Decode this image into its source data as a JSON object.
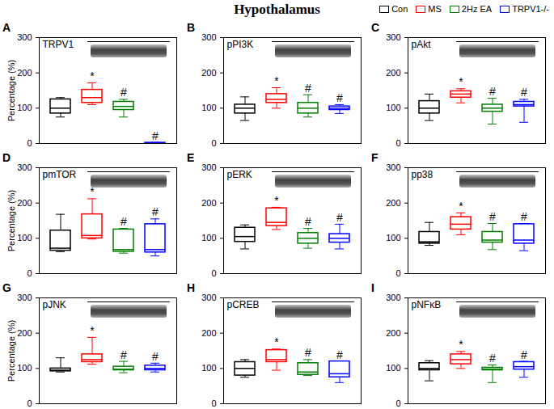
{
  "title": "Hypothalamus",
  "chart_data": [
    {
      "type": "box",
      "panel": "A",
      "title": "TRPV1",
      "ylabel": "Percentage (%)",
      "categories": [
        "Con",
        "MS",
        "2Hz EA",
        "TRPV1-/-"
      ],
      "colors": [
        "#000000",
        "#ff0000",
        "#008000",
        "#0000ff"
      ],
      "min": [
        75,
        110,
        75,
        0
      ],
      "q1": [
        85,
        115,
        95,
        0
      ],
      "median": [
        100,
        130,
        105,
        1
      ],
      "q3": [
        125,
        152,
        118,
        2
      ],
      "max": [
        130,
        172,
        125,
        3
      ],
      "annotations": [
        null,
        "*",
        "#",
        "#"
      ],
      "ylim": [
        0,
        300
      ],
      "yticks": [
        0,
        100,
        200,
        300
      ],
      "tick_labels": "y"
    },
    {
      "type": "box",
      "panel": "B",
      "title": "pPI3K",
      "categories": [
        "Con",
        "MS",
        "2Hz EA",
        "TRPV1-/-"
      ],
      "colors": [
        "#000000",
        "#ff0000",
        "#008000",
        "#0000ff"
      ],
      "min": [
        65,
        100,
        75,
        85
      ],
      "q1": [
        85,
        115,
        85,
        95
      ],
      "median": [
        100,
        125,
        100,
        100
      ],
      "q3": [
        110,
        140,
        115,
        105
      ],
      "max": [
        132,
        158,
        138,
        110
      ],
      "annotations": [
        null,
        "*",
        "#",
        "#"
      ],
      "ylim": [
        0,
        300
      ],
      "yticks": [
        0,
        100,
        200,
        300
      ],
      "tick_labels": "y"
    },
    {
      "type": "box",
      "panel": "C",
      "title": "pAkt",
      "categories": [
        "Con",
        "MS",
        "2Hz EA",
        "TRPV1-/-"
      ],
      "colors": [
        "#000000",
        "#ff0000",
        "#008000",
        "#0000ff"
      ],
      "min": [
        65,
        115,
        55,
        60
      ],
      "q1": [
        85,
        130,
        90,
        105
      ],
      "median": [
        100,
        140,
        100,
        110
      ],
      "q3": [
        120,
        148,
        110,
        118
      ],
      "max": [
        140,
        155,
        128,
        125
      ],
      "annotations": [
        null,
        "*",
        "#",
        "#"
      ],
      "ylim": [
        0,
        300
      ],
      "yticks": [
        0,
        100,
        200,
        300
      ],
      "tick_labels": "y"
    },
    {
      "type": "box",
      "panel": "D",
      "title": "pmTOR",
      "ylabel": "Percentage (%)",
      "categories": [
        "Con",
        "MS",
        "2Hz EA",
        "TRPV1-/-"
      ],
      "colors": [
        "#000000",
        "#ff0000",
        "#008000",
        "#0000ff"
      ],
      "min": [
        62,
        98,
        58,
        50
      ],
      "q1": [
        65,
        100,
        62,
        60
      ],
      "median": [
        72,
        108,
        68,
        68
      ],
      "q3": [
        122,
        168,
        125,
        140
      ],
      "max": [
        168,
        212,
        128,
        155
      ],
      "annotations": [
        null,
        "*",
        "#",
        "#"
      ],
      "ylim": [
        0,
        300
      ],
      "yticks": [
        0,
        100,
        200,
        300
      ],
      "tick_labels": "y"
    },
    {
      "type": "box",
      "panel": "E",
      "title": "pERK",
      "categories": [
        "Con",
        "MS",
        "2Hz EA",
        "TRPV1-/-"
      ],
      "colors": [
        "#000000",
        "#ff0000",
        "#008000",
        "#0000ff"
      ],
      "min": [
        70,
        125,
        72,
        70
      ],
      "q1": [
        90,
        135,
        85,
        88
      ],
      "median": [
        105,
        145,
        100,
        100
      ],
      "q3": [
        130,
        185,
        115,
        112
      ],
      "max": [
        138,
        188,
        128,
        140
      ],
      "annotations": [
        null,
        "*",
        "#",
        "#"
      ],
      "ylim": [
        0,
        300
      ],
      "yticks": [
        0,
        100,
        200,
        300
      ],
      "tick_labels": "y"
    },
    {
      "type": "box",
      "panel": "F",
      "title": "pp38",
      "categories": [
        "Con",
        "MS",
        "2Hz EA",
        "TRPV1-/-"
      ],
      "colors": [
        "#000000",
        "#ff0000",
        "#008000",
        "#0000ff"
      ],
      "min": [
        80,
        110,
        68,
        65
      ],
      "q1": [
        85,
        125,
        88,
        85
      ],
      "median": [
        90,
        140,
        95,
        95
      ],
      "q3": [
        118,
        160,
        118,
        140
      ],
      "max": [
        145,
        172,
        142,
        142
      ],
      "annotations": [
        null,
        "*",
        "#",
        "#"
      ],
      "ylim": [
        0,
        300
      ],
      "yticks": [
        0,
        100,
        200,
        300
      ],
      "tick_labels": "y"
    },
    {
      "type": "box",
      "panel": "G",
      "title": "pJNK",
      "ylabel": "Percentage (%)",
      "categories": [
        "Con",
        "MS",
        "2Hz EA",
        "TRPV1-/-"
      ],
      "colors": [
        "#000000",
        "#ff0000",
        "#008000",
        "#0000ff"
      ],
      "min": [
        90,
        112,
        88,
        90
      ],
      "q1": [
        92,
        118,
        95,
        95
      ],
      "median": [
        95,
        125,
        98,
        100
      ],
      "q3": [
        100,
        140,
        105,
        108
      ],
      "max": [
        130,
        188,
        120,
        115
      ],
      "annotations": [
        null,
        "*",
        "#",
        "#"
      ],
      "ylim": [
        0,
        300
      ],
      "yticks": [
        0,
        100,
        200,
        300
      ],
      "tick_labels": "y"
    },
    {
      "type": "box",
      "panel": "H",
      "title": "pCREB",
      "categories": [
        "Con",
        "MS",
        "2Hz EA",
        "TRPV1-/-"
      ],
      "colors": [
        "#000000",
        "#ff0000",
        "#008000",
        "#0000ff"
      ],
      "min": [
        75,
        95,
        80,
        60
      ],
      "q1": [
        80,
        118,
        82,
        75
      ],
      "median": [
        100,
        125,
        90,
        85
      ],
      "q3": [
        118,
        152,
        115,
        120
      ],
      "max": [
        125,
        155,
        125,
        120
      ],
      "annotations": [
        null,
        "*",
        "#",
        "#"
      ],
      "ylim": [
        0,
        300
      ],
      "yticks": [
        0,
        100,
        200,
        300
      ],
      "tick_labels": "y"
    },
    {
      "type": "box",
      "panel": "I",
      "title": "pNFκB",
      "categories": [
        "Con",
        "MS",
        "2Hz EA",
        "TRPV1-/-"
      ],
      "colors": [
        "#000000",
        "#ff0000",
        "#008000",
        "#0000ff"
      ],
      "min": [
        65,
        100,
        60,
        75
      ],
      "q1": [
        95,
        112,
        95,
        97
      ],
      "median": [
        100,
        125,
        98,
        105
      ],
      "q3": [
        115,
        140,
        102,
        118
      ],
      "max": [
        122,
        148,
        110,
        120
      ],
      "annotations": [
        null,
        "*",
        "#",
        "#"
      ],
      "ylim": [
        0,
        300
      ],
      "yticks": [
        0,
        100,
        200,
        300
      ],
      "tick_labels": "y"
    }
  ]
}
